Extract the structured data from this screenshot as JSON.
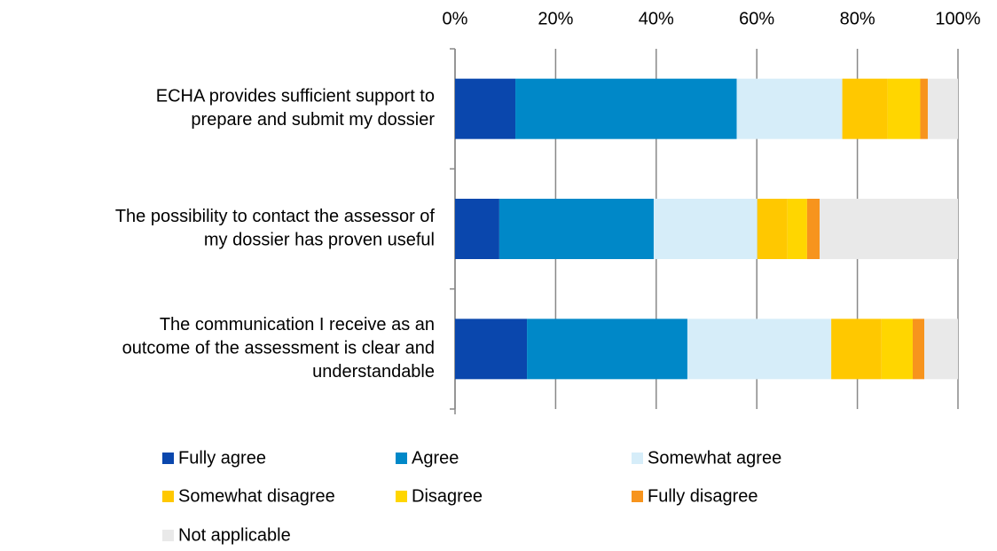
{
  "chart_data": {
    "type": "stacked_bar_horizontal",
    "categories": [
      [
        "ECHA provides sufficient support to",
        "prepare and submit my dossier"
      ],
      [
        "The possibility to contact the assessor of",
        "my dossier has proven useful"
      ],
      [
        "The communication I receive as an",
        "outcome of the assessment is clear and",
        "understandable"
      ]
    ],
    "series": [
      {
        "name": "Fully agree",
        "color": "#0a47ad",
        "values": [
          12,
          8.8,
          14.3
        ]
      },
      {
        "name": "Agree",
        "color": "#0088c8",
        "values": [
          44,
          30.7,
          31.9
        ]
      },
      {
        "name": "Somewhat agree",
        "color": "#d6edf9",
        "values": [
          21,
          20.6,
          28.6
        ]
      },
      {
        "name": "Somewhat disagree",
        "color": "#ffc800",
        "values": [
          9,
          6,
          10
        ]
      },
      {
        "name": "Disagree",
        "color": "#ffd600",
        "values": [
          6.5,
          3.9,
          6.2
        ]
      },
      {
        "name": "Fully disagree",
        "color": "#f7941d",
        "values": [
          1.5,
          2.5,
          2.3
        ]
      },
      {
        "name": "Not applicable",
        "color": "#e9e9e9",
        "values": [
          6,
          27.5,
          6.7
        ]
      }
    ],
    "xlim": [
      0,
      100
    ],
    "xticks": [
      {
        "value": 0,
        "label": "0%"
      },
      {
        "value": 20,
        "label": "20%"
      },
      {
        "value": 40,
        "label": "40%"
      },
      {
        "value": 60,
        "label": "60%"
      },
      {
        "value": 80,
        "label": "80%"
      },
      {
        "value": 100,
        "label": "100%"
      }
    ],
    "grid": true,
    "legend": "bottom"
  }
}
